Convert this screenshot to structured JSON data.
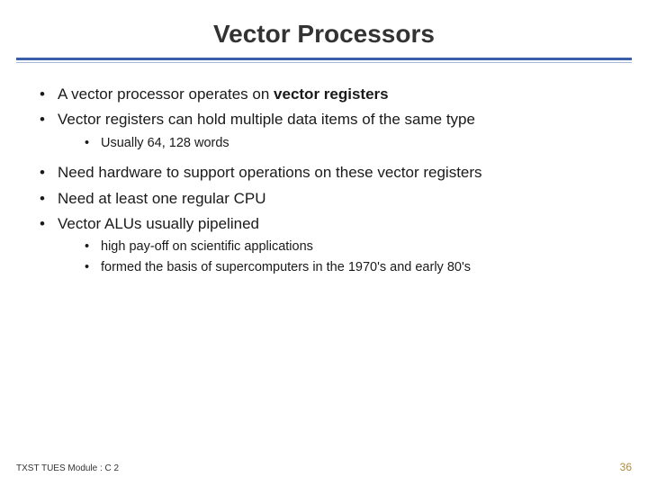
{
  "title": "Vector Processors",
  "colors": {
    "rule_primary": "#3a5fa8",
    "rule_secondary": "#a9b8d8",
    "title_color": "#333333",
    "body_text": "#1a1a1a",
    "page_number_color": "#b38a3a",
    "background": "#ffffff"
  },
  "typography": {
    "title_fontsize": 28,
    "body_fontsize": 17,
    "sub_fontsize": 14.5,
    "footer_fontsize": 10,
    "pagenum_fontsize": 12,
    "font_family": "Arial"
  },
  "bullets": [
    {
      "segments": [
        {
          "text": "A vector processor operates on ",
          "bold": false
        },
        {
          "text": "vector registers",
          "bold": true
        }
      ]
    },
    {
      "segments": [
        {
          "text": "Vector registers can hold multiple data items of the same type",
          "bold": false
        }
      ],
      "children": [
        {
          "segments": [
            {
              "text": "Usually 64, 128 words",
              "bold": false
            }
          ]
        }
      ]
    },
    {
      "segments": [
        {
          "text": "Need hardware to support operations on these vector registers",
          "bold": false
        }
      ]
    },
    {
      "segments": [
        {
          "text": "Need at least one regular CPU",
          "bold": false
        }
      ]
    },
    {
      "segments": [
        {
          "text": "Vector ALUs usually pipelined",
          "bold": false
        }
      ],
      "children": [
        {
          "segments": [
            {
              "text": "high pay-off on scientific applications",
              "bold": false
            }
          ]
        },
        {
          "segments": [
            {
              "text": "formed the basis of supercomputers in the 1970's and early 80's",
              "bold": false
            }
          ]
        }
      ]
    }
  ],
  "footer_left": "TXST TUES Module : C 2",
  "page_number": "36"
}
